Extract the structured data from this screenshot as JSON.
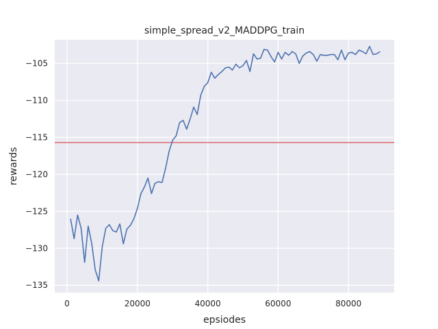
{
  "chart_data": {
    "type": "line",
    "title": "simple_spread_v2_MADDPG_train",
    "xlabel": "epsiodes",
    "ylabel": "rewards",
    "xlim": [
      -3500,
      93000
    ],
    "ylim": [
      -136,
      -101.8
    ],
    "xticks": [
      0,
      20000,
      40000,
      60000,
      80000
    ],
    "xtick_labels": [
      "0",
      "20000",
      "40000",
      "60000",
      "80000"
    ],
    "yticks": [
      -105,
      -110,
      -115,
      -120,
      -125,
      -130,
      -135
    ],
    "ytick_labels": [
      "−105",
      "−110",
      "−115",
      "−120",
      "−125",
      "−130",
      "−135"
    ],
    "grid": true,
    "background": "#eaeaf2",
    "line_color": "#4c72b0",
    "hline": {
      "y": -115.7,
      "color": "#d62728"
    },
    "series": [
      {
        "x": [
          1000,
          2000,
          3000,
          4000,
          5000,
          6000,
          7000,
          8000,
          9000,
          10000,
          11000,
          12000,
          13000,
          14000,
          15000,
          16000,
          17000,
          18000,
          19000,
          20000,
          21000,
          22000,
          23000,
          24000,
          25000,
          26000,
          27000,
          28000,
          29000,
          30000,
          31000,
          32000,
          33000,
          34000,
          35000,
          36000,
          37000,
          38000,
          39000,
          40000,
          41000,
          42000,
          43000,
          44000,
          45000,
          46000,
          47000,
          48000,
          49000,
          50000,
          51000,
          52000,
          53000,
          54000,
          55000,
          56000,
          57000,
          58000,
          59000,
          60000,
          61000,
          62000,
          63000,
          64000,
          65000,
          66000,
          67000,
          68000,
          69000,
          70000,
          71000,
          72000,
          73000,
          74000,
          75000,
          76000,
          77000,
          78000,
          79000,
          80000,
          81000,
          82000,
          83000,
          84000,
          85000,
          86000,
          87000,
          88000,
          89000
        ],
        "values": [
          -126.0,
          -128.7,
          -125.5,
          -127.3,
          -131.9,
          -127.0,
          -129.3,
          -132.9,
          -134.4,
          -129.8,
          -127.3,
          -126.8,
          -127.6,
          -127.8,
          -126.7,
          -129.4,
          -127.4,
          -126.9,
          -126.0,
          -124.6,
          -122.6,
          -121.7,
          -120.5,
          -122.6,
          -121.2,
          -121.0,
          -121.1,
          -119.2,
          -116.9,
          -115.4,
          -114.8,
          -113.0,
          -112.7,
          -113.9,
          -112.5,
          -110.9,
          -111.9,
          -109.3,
          -108.1,
          -107.6,
          -106.2,
          -107.0,
          -106.5,
          -106.1,
          -105.6,
          -105.5,
          -105.9,
          -105.1,
          -105.6,
          -105.3,
          -104.6,
          -106.1,
          -103.7,
          -104.4,
          -104.3,
          -103.1,
          -103.2,
          -104.1,
          -104.8,
          -103.5,
          -104.4,
          -103.5,
          -103.9,
          -103.4,
          -103.7,
          -105.0,
          -104.0,
          -103.6,
          -103.4,
          -103.8,
          -104.7,
          -103.8,
          -103.9,
          -103.9,
          -103.8,
          -103.8,
          -104.5,
          -103.2,
          -104.5,
          -103.6,
          -103.5,
          -103.8,
          -103.2,
          -103.4,
          -103.7,
          -102.7,
          -103.8,
          -103.7,
          -103.4
        ]
      }
    ]
  }
}
